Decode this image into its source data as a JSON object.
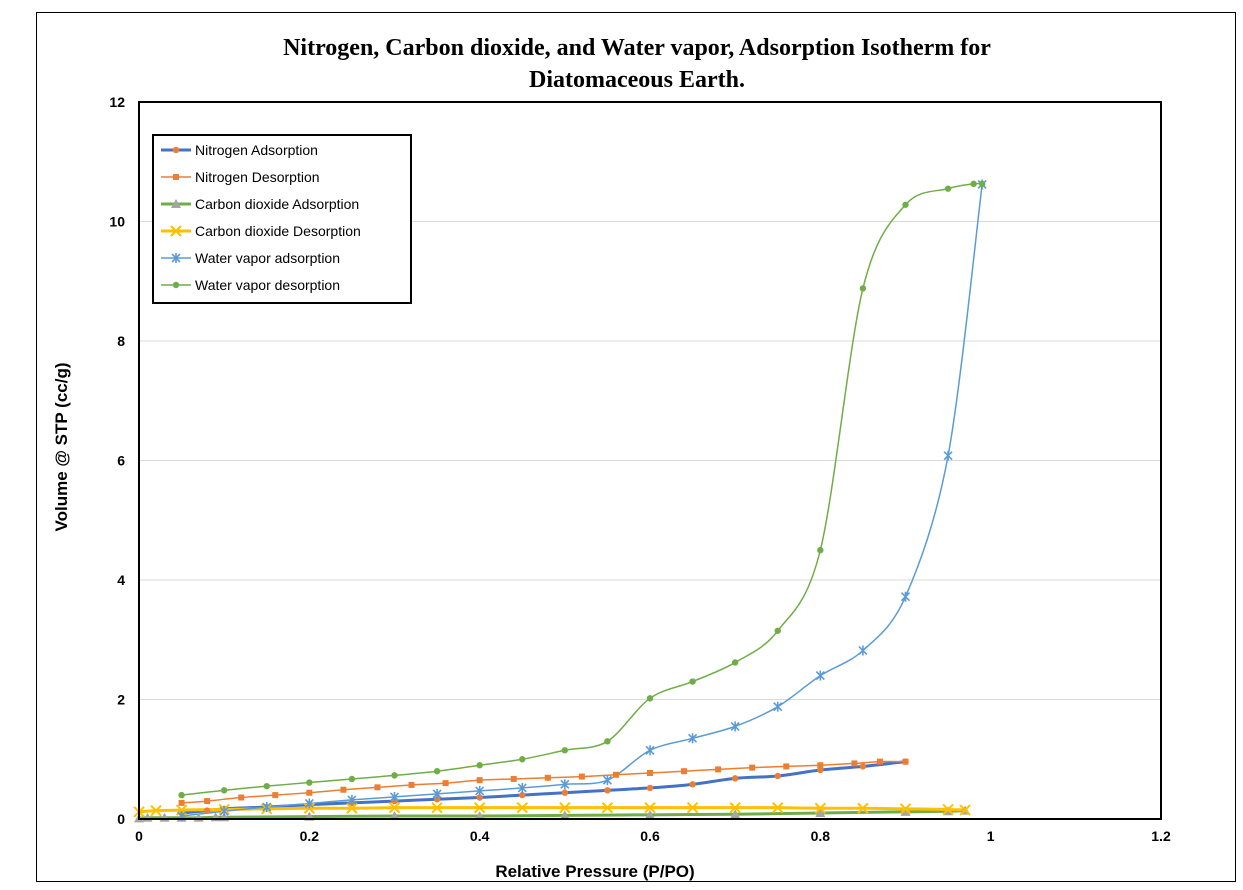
{
  "chart_data": {
    "type": "line",
    "title_line1": "Nitrogen, Carbon dioxide, and Water vapor,  Adsorption Isotherm for",
    "title_line2": "Diatomaceous Earth.",
    "xlabel": "Relative Pressure (P/PO)",
    "ylabel": "Volume @ STP (cc/g)",
    "xlim": [
      0,
      1.2
    ],
    "ylim": [
      0,
      12
    ],
    "xticks": [
      "0",
      "0.2",
      "0.4",
      "0.6",
      "0.8",
      "1",
      "1.2"
    ],
    "yticks": [
      "0",
      "2",
      "4",
      "6",
      "8",
      "10",
      "12"
    ],
    "grid": "horizontal",
    "legend_position": "top-left",
    "series": [
      {
        "name": "Nitrogen Adsorption",
        "color": "#4472C4",
        "marker": "circle",
        "marker_color": "#ED7D31",
        "line_width": 3,
        "points": [
          [
            0.05,
            0.1
          ],
          [
            0.08,
            0.14
          ],
          [
            0.1,
            0.17
          ],
          [
            0.15,
            0.2
          ],
          [
            0.2,
            0.24
          ],
          [
            0.25,
            0.27
          ],
          [
            0.3,
            0.3
          ],
          [
            0.35,
            0.33
          ],
          [
            0.4,
            0.36
          ],
          [
            0.45,
            0.4
          ],
          [
            0.5,
            0.44
          ],
          [
            0.55,
            0.48
          ],
          [
            0.6,
            0.52
          ],
          [
            0.65,
            0.58
          ],
          [
            0.7,
            0.68
          ],
          [
            0.75,
            0.72
          ],
          [
            0.8,
            0.82
          ],
          [
            0.85,
            0.88
          ],
          [
            0.9,
            0.96
          ]
        ]
      },
      {
        "name": "Nitrogen Desorption",
        "color": "#ED7D31",
        "marker": "square",
        "marker_color": "#ED7D31",
        "line_width": 1.5,
        "points": [
          [
            0.05,
            0.27
          ],
          [
            0.08,
            0.3
          ],
          [
            0.12,
            0.36
          ],
          [
            0.16,
            0.4
          ],
          [
            0.2,
            0.44
          ],
          [
            0.24,
            0.49
          ],
          [
            0.28,
            0.53
          ],
          [
            0.32,
            0.57
          ],
          [
            0.36,
            0.6
          ],
          [
            0.4,
            0.65
          ],
          [
            0.44,
            0.67
          ],
          [
            0.48,
            0.69
          ],
          [
            0.52,
            0.71
          ],
          [
            0.56,
            0.74
          ],
          [
            0.6,
            0.77
          ],
          [
            0.64,
            0.8
          ],
          [
            0.68,
            0.83
          ],
          [
            0.72,
            0.86
          ],
          [
            0.76,
            0.88
          ],
          [
            0.8,
            0.9
          ],
          [
            0.84,
            0.93
          ],
          [
            0.87,
            0.96
          ],
          [
            0.9,
            0.96
          ]
        ]
      },
      {
        "name": "Carbon dioxide Adsorption",
        "color": "#70AD47",
        "marker": "triangle",
        "marker_color": "#A5A5A5",
        "line_width": 3,
        "points": [
          [
            0.0,
            0.01
          ],
          [
            0.01,
            0.02
          ],
          [
            0.03,
            0.02
          ],
          [
            0.05,
            0.02
          ],
          [
            0.07,
            0.02
          ],
          [
            0.09,
            0.03
          ],
          [
            0.1,
            0.03
          ],
          [
            0.2,
            0.04
          ],
          [
            0.3,
            0.05
          ],
          [
            0.4,
            0.05
          ],
          [
            0.5,
            0.06
          ],
          [
            0.6,
            0.07
          ],
          [
            0.7,
            0.08
          ],
          [
            0.8,
            0.1
          ],
          [
            0.9,
            0.12
          ],
          [
            0.95,
            0.13
          ],
          [
            0.97,
            0.14
          ]
        ]
      },
      {
        "name": "Carbon dioxide Desorption",
        "color": "#FFC000",
        "marker": "x",
        "marker_color": "#FFC000",
        "line_width": 3,
        "points": [
          [
            0.0,
            0.12
          ],
          [
            0.02,
            0.14
          ],
          [
            0.05,
            0.15
          ],
          [
            0.1,
            0.16
          ],
          [
            0.15,
            0.17
          ],
          [
            0.2,
            0.18
          ],
          [
            0.25,
            0.18
          ],
          [
            0.3,
            0.19
          ],
          [
            0.35,
            0.19
          ],
          [
            0.4,
            0.19
          ],
          [
            0.45,
            0.19
          ],
          [
            0.5,
            0.19
          ],
          [
            0.55,
            0.19
          ],
          [
            0.6,
            0.19
          ],
          [
            0.65,
            0.19
          ],
          [
            0.7,
            0.19
          ],
          [
            0.75,
            0.19
          ],
          [
            0.8,
            0.18
          ],
          [
            0.85,
            0.18
          ],
          [
            0.9,
            0.17
          ],
          [
            0.95,
            0.16
          ],
          [
            0.97,
            0.15
          ]
        ]
      },
      {
        "name": "Water vapor adsorption",
        "color": "#5B9BD5",
        "marker": "star",
        "marker_color": "#5B9BD5",
        "line_width": 1.5,
        "points": [
          [
            0.05,
            0.05
          ],
          [
            0.1,
            0.13
          ],
          [
            0.15,
            0.2
          ],
          [
            0.2,
            0.26
          ],
          [
            0.25,
            0.32
          ],
          [
            0.3,
            0.37
          ],
          [
            0.35,
            0.42
          ],
          [
            0.4,
            0.47
          ],
          [
            0.45,
            0.52
          ],
          [
            0.5,
            0.58
          ],
          [
            0.55,
            0.65
          ],
          [
            0.6,
            1.15
          ],
          [
            0.65,
            1.35
          ],
          [
            0.7,
            1.55
          ],
          [
            0.75,
            1.88
          ],
          [
            0.8,
            2.4
          ],
          [
            0.85,
            2.82
          ],
          [
            0.9,
            3.72
          ],
          [
            0.95,
            6.08
          ],
          [
            0.99,
            10.62
          ]
        ]
      },
      {
        "name": "Water vapor desorption",
        "color": "#70AD47",
        "marker": "circle",
        "marker_color": "#70AD47",
        "line_width": 1.5,
        "points": [
          [
            0.05,
            0.4
          ],
          [
            0.1,
            0.48
          ],
          [
            0.15,
            0.55
          ],
          [
            0.2,
            0.61
          ],
          [
            0.25,
            0.67
          ],
          [
            0.3,
            0.73
          ],
          [
            0.35,
            0.8
          ],
          [
            0.4,
            0.9
          ],
          [
            0.45,
            1.0
          ],
          [
            0.5,
            1.15
          ],
          [
            0.55,
            1.3
          ],
          [
            0.6,
            2.02
          ],
          [
            0.65,
            2.3
          ],
          [
            0.7,
            2.62
          ],
          [
            0.75,
            3.15
          ],
          [
            0.8,
            4.5
          ],
          [
            0.85,
            8.88
          ],
          [
            0.9,
            10.28
          ],
          [
            0.95,
            10.55
          ],
          [
            0.98,
            10.63
          ],
          [
            0.99,
            10.63
          ]
        ]
      }
    ]
  }
}
